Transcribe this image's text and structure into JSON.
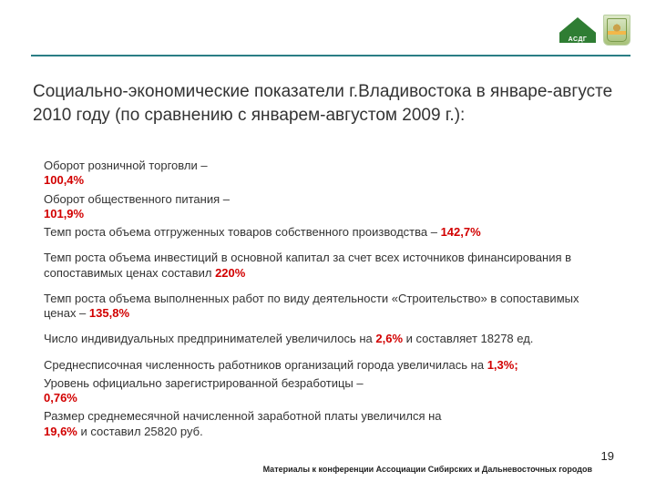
{
  "logos": {
    "logo1_label": "АСДГ"
  },
  "title": "Социально-экономические показатели г.Владивостока в январе-августе 2010 году (по сравнению с январем-августом 2009 г.):",
  "items": [
    {
      "text": "Оборот розничной торговли –",
      "value": "100,4%",
      "value_newline": true
    },
    {
      "text": "Оборот общественного питания –",
      "value": "101,9%",
      "value_newline": true
    },
    {
      "text": "Темп роста объема отгруженных товаров собственного производства – ",
      "value": "142,7%",
      "value_newline": false,
      "gap_after": true
    },
    {
      "text": "Темп роста объема инвестиций в основной капитал за счет всех источников финансирования в сопоставимых ценах составил ",
      "value": "220%",
      "value_newline": false,
      "gap_after": true
    },
    {
      "text": "Темп роста объема выполненных работ по виду деятельности «Строительство» в сопоставимых ценах – ",
      "value": "135,8%",
      "value_newline": false,
      "gap_after": true
    },
    {
      "text": "Число индивидуальных предпринимателей увеличилось на ",
      "value": "2,6%",
      "suffix": " и составляет 18278 ед.",
      "value_newline": false,
      "gap_after": true
    },
    {
      "text": "Среднесписочная численность работников организаций города увеличилась на ",
      "value": "1,3%;",
      "value_newline": false
    },
    {
      "text": "Уровень официально зарегистрированной безработицы –",
      "value": "0,76%",
      "value_newline": true
    },
    {
      "text": "Размер среднемесячной начисленной заработной платы увеличился на",
      "value": "19,6%",
      "suffix": " и составил 25820 руб.",
      "value_newline": true
    }
  ],
  "footer": "Материалы к конференции Ассоциации Сибирских и Дальневосточных городов",
  "page_number": "19",
  "colors": {
    "rule": "#2a7e85",
    "highlight": "#d20000",
    "text": "#333333"
  }
}
